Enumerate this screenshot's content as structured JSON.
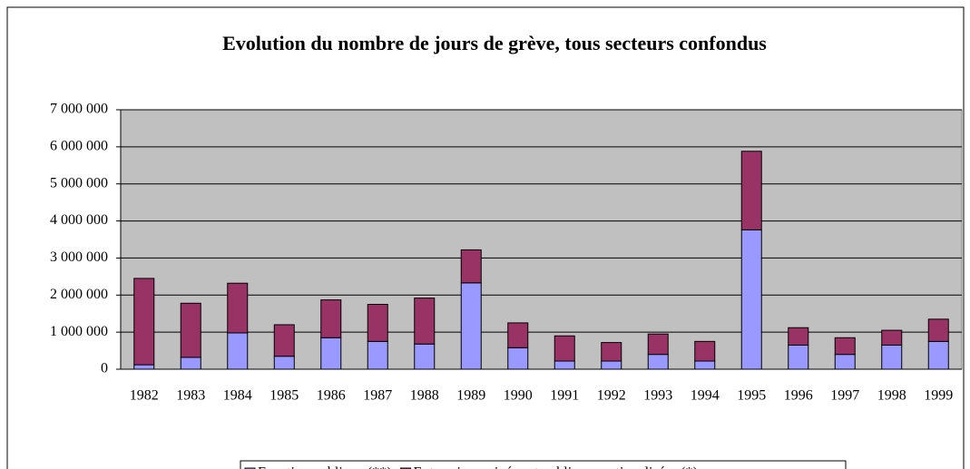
{
  "chart_data": {
    "type": "bar",
    "stacked": true,
    "title": "Evolution du nombre de jours de grève, tous secteurs confondus",
    "categories": [
      "1982",
      "1983",
      "1984",
      "1985",
      "1986",
      "1987",
      "1988",
      "1989",
      "1990",
      "1991",
      "1992",
      "1993",
      "1994",
      "1995",
      "1996",
      "1997",
      "1998",
      "1999"
    ],
    "series": [
      {
        "name": "Fonction publique (**)",
        "color": "#9999ff",
        "values": [
          120000,
          320000,
          980000,
          350000,
          850000,
          750000,
          680000,
          2330000,
          580000,
          220000,
          220000,
          400000,
          220000,
          3760000,
          650000,
          400000,
          650000,
          750000
        ]
      },
      {
        "name": "Entreprises privées et publiques nationalisées (*)",
        "color": "#993366",
        "values": [
          2330000,
          1460000,
          1340000,
          850000,
          1020000,
          1000000,
          1240000,
          890000,
          670000,
          680000,
          500000,
          550000,
          530000,
          2120000,
          470000,
          450000,
          400000,
          600000
        ]
      }
    ],
    "ylim": [
      0,
      7000000
    ],
    "yticks": [
      0,
      {
        "value": 1000000,
        "label": "1 000 000"
      },
      {
        "value": 2000000,
        "label": "2 000 000"
      },
      {
        "value": 3000000,
        "label": "3 000 000"
      },
      {
        "value": 4000000,
        "label": "4 000 000"
      },
      {
        "value": 5000000,
        "label": "5 000 000"
      },
      {
        "value": 6000000,
        "label": "6 000 000"
      },
      {
        "value": 7000000,
        "label": "7 000 000"
      }
    ],
    "grid": true,
    "legend": "bottom",
    "plot_background": "#c0c0c0"
  }
}
